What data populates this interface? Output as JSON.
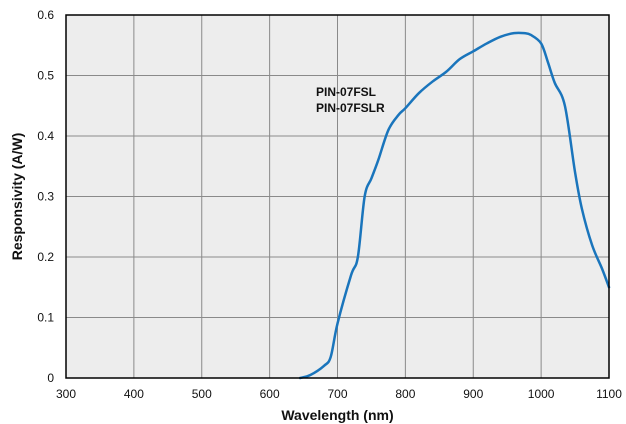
{
  "chart_data": {
    "type": "line",
    "title": "",
    "xlabel": "Wavelength (nm)",
    "ylabel": "Responsivity (A/W)",
    "xlim": [
      300,
      1100
    ],
    "ylim": [
      0,
      0.6
    ],
    "x_ticks": [
      300,
      400,
      500,
      600,
      700,
      800,
      900,
      1000,
      1100
    ],
    "y_ticks": [
      0,
      0.1,
      0.2,
      0.3,
      0.4,
      0.5,
      0.6
    ],
    "x_tick_labels": [
      "300",
      "400",
      "500",
      "600",
      "700",
      "800",
      "900",
      "1000",
      "1100"
    ],
    "y_tick_labels": [
      "0",
      "0.1",
      "0.2",
      "0.3",
      "0.4",
      "0.5",
      "0.6"
    ],
    "grid": true,
    "annotations": [
      "PIN-07FSL",
      "PIN-07FSLR"
    ],
    "series": [
      {
        "color": "#1a75bc",
        "x": [
          645,
          660,
          680,
          690,
          700,
          720,
          730,
          740,
          750,
          760,
          775,
          790,
          800,
          820,
          840,
          860,
          880,
          900,
          920,
          940,
          960,
          975,
          985,
          1000,
          1010,
          1020,
          1035,
          1050,
          1060,
          1075,
          1090,
          1100
        ],
        "y": [
          0,
          0.005,
          0.02,
          0.035,
          0.09,
          0.17,
          0.2,
          0.3,
          0.33,
          0.36,
          0.41,
          0.435,
          0.446,
          0.471,
          0.49,
          0.506,
          0.527,
          0.54,
          0.553,
          0.564,
          0.57,
          0.57,
          0.567,
          0.553,
          0.522,
          0.488,
          0.45,
          0.34,
          0.28,
          0.22,
          0.18,
          0.15
        ]
      }
    ]
  }
}
